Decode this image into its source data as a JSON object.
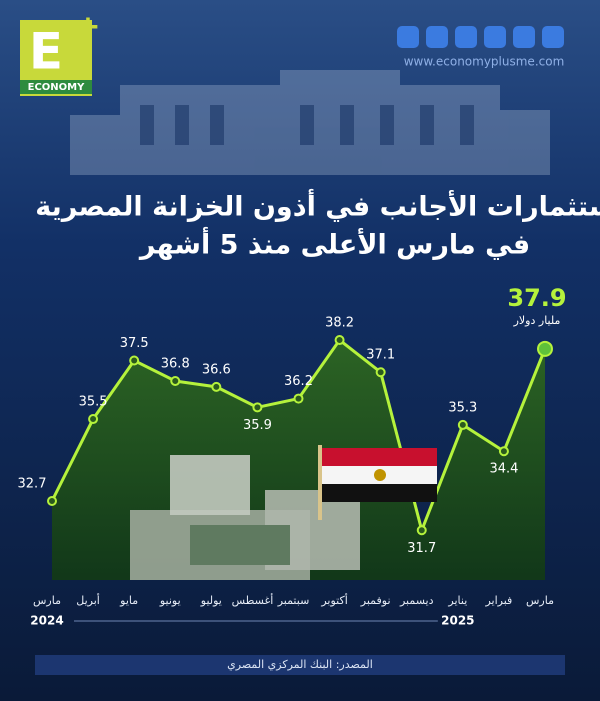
{
  "logo": {
    "letter": "E",
    "text": "ECONOMY"
  },
  "website": "www.economyplusme.com",
  "source": "المصدر: البنك المركزي المصري",
  "chart_data": {
    "type": "line",
    "title": [
      "استثمارات الأجانب في أذون الخزانة المصرية",
      "في مارس الأعلى منذ 5 أشهر"
    ],
    "unit": "مليار دولار",
    "categories": [
      "مارس",
      "أبريل",
      "مايو",
      "يونيو",
      "يوليو",
      "أغسطس",
      "سبتمبر",
      "أكتوبر",
      "نوفمبر",
      "ديسمبر",
      "يناير",
      "فبراير",
      "مارس"
    ],
    "years": [
      {
        "label": "2024",
        "index": 0
      },
      {
        "label": "2025",
        "index": 10
      }
    ],
    "values": [
      32.7,
      35.5,
      37.5,
      36.8,
      36.6,
      35.9,
      36.2,
      38.2,
      37.1,
      31.7,
      35.3,
      34.4,
      37.9
    ],
    "color": "#b5f23c",
    "ylim": [
      30,
      39.5
    ]
  }
}
